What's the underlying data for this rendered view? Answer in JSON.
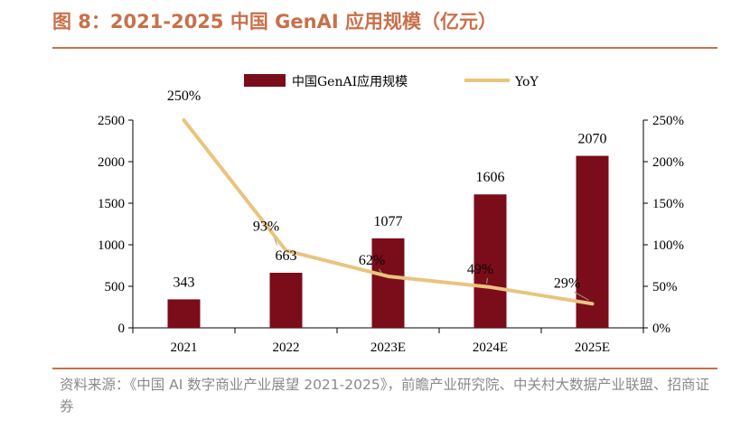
{
  "figure": {
    "title": "图 8：2021-2025 中国 GenAI 应用规模（亿元）",
    "source": "资料来源：《中国 AI 数字商业产业展望 2021-2025》，前瞻产业研究院、中关村大数据产业联盟、招商证券"
  },
  "colors": {
    "bar": "#7b0c1a",
    "line": "#e9c47e",
    "title": "#c8704a",
    "source": "#8a8a8a"
  },
  "chart_data": {
    "type": "bar",
    "title": "2021-2025 中国 GenAI 应用规模（亿元）",
    "categories": [
      "2021",
      "2022",
      "2023E",
      "2024E",
      "2025E"
    ],
    "series": [
      {
        "name": "中国GenAI应用规模",
        "type": "bar",
        "axis": "left",
        "values": [
          343,
          663,
          1077,
          1606,
          2070
        ],
        "labels": [
          "343",
          "663",
          "1077",
          "1606",
          "2070"
        ]
      },
      {
        "name": "YoY",
        "type": "line",
        "axis": "right",
        "values": [
          250,
          93,
          62,
          49,
          29
        ],
        "labels": [
          "250%",
          "93%",
          "62%",
          "49%",
          "29%"
        ]
      }
    ],
    "y_left": {
      "min": 0,
      "max": 2500,
      "ticks": [
        "0",
        "500",
        "1000",
        "1500",
        "2000",
        "2500"
      ]
    },
    "y_right": {
      "min": 0,
      "max": 250,
      "ticks": [
        "0%",
        "50%",
        "100%",
        "150%",
        "200%",
        "250%"
      ]
    },
    "legend_position": "top-center",
    "grid": false
  }
}
